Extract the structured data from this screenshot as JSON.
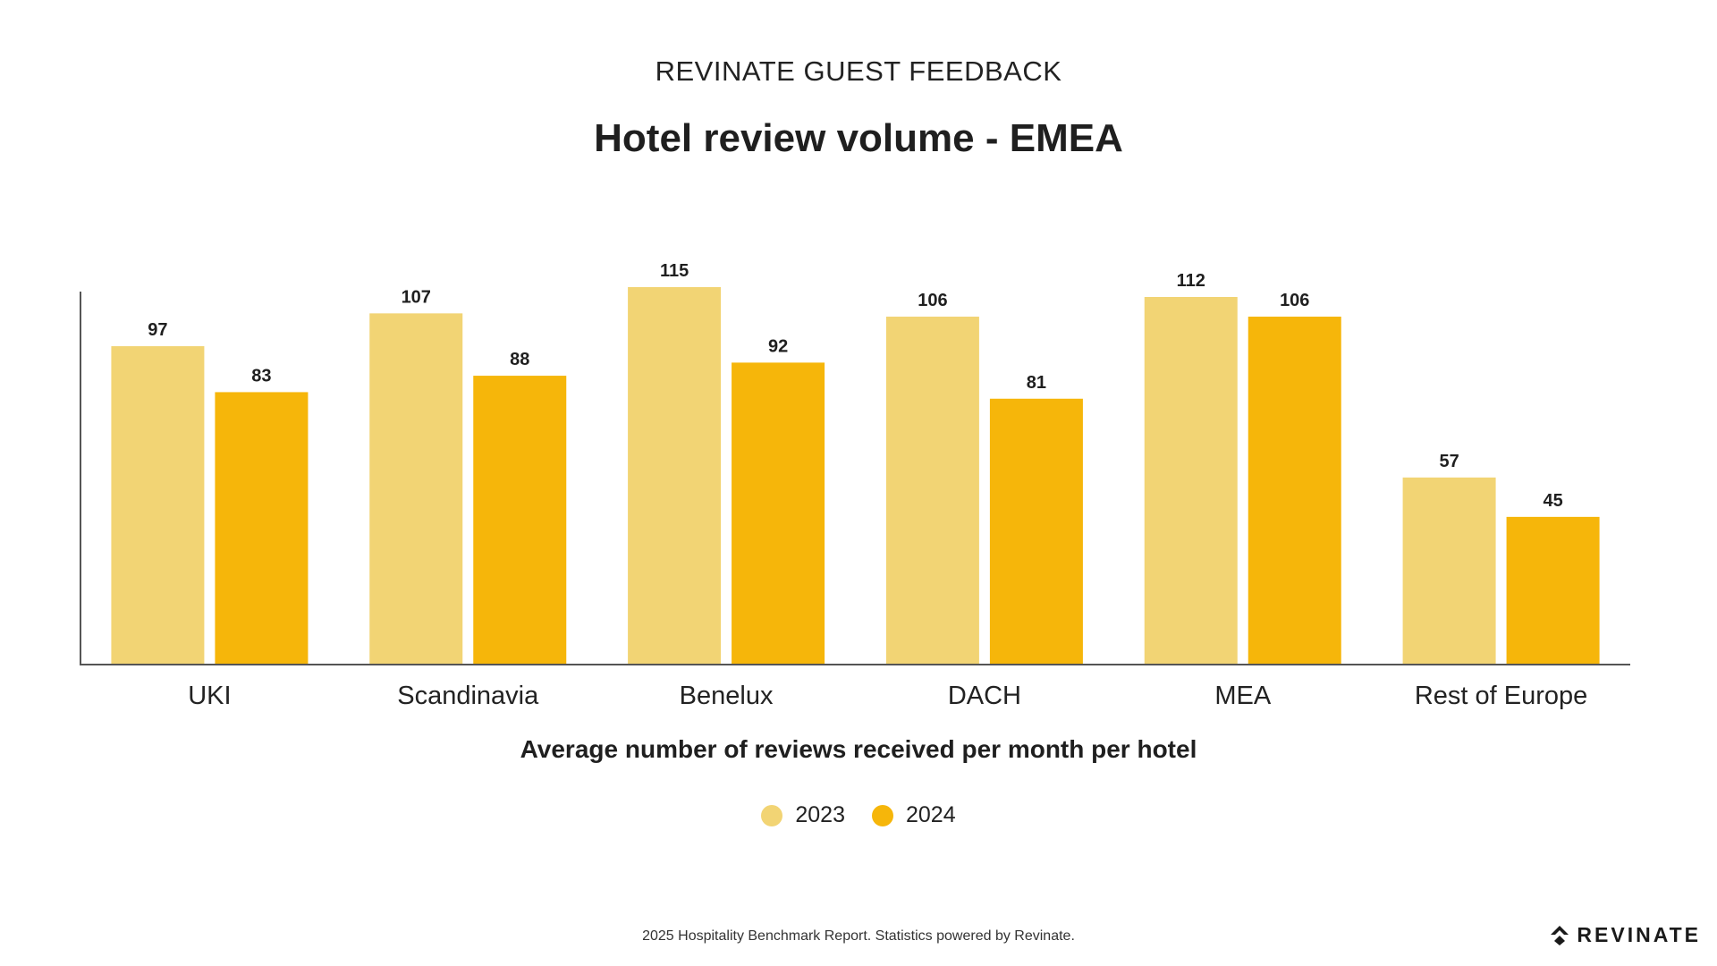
{
  "header": {
    "supertitle": "REVINATE GUEST FEEDBACK",
    "title": "Hotel review volume - EMEA"
  },
  "chart_data": {
    "type": "bar",
    "title": "Hotel review volume - EMEA",
    "xlabel": "Average number of reviews received per month per hotel",
    "ylabel": "",
    "categories": [
      "UKI",
      "Scandinavia",
      "Benelux",
      "DACH",
      "MEA",
      "Rest of Europe"
    ],
    "series": [
      {
        "name": "2023",
        "values": [
          97,
          107,
          115,
          106,
          112,
          57
        ],
        "color": "#f2d474"
      },
      {
        "name": "2024",
        "values": [
          83,
          88,
          92,
          81,
          106,
          45
        ],
        "color": "#f6b60a"
      }
    ],
    "ylim": [
      0,
      125
    ],
    "grid": false,
    "legend": "bottom-center",
    "data_labels": true
  },
  "legend": {
    "items": [
      {
        "label": "2023",
        "color": "#f2d474"
      },
      {
        "label": "2024",
        "color": "#f6b60a"
      }
    ]
  },
  "footer": {
    "text": "2025 Hospitality Benchmark Report. Statistics powered by Revinate."
  },
  "logo": {
    "icon": "revinate-logo-icon",
    "text": "REVINATE"
  }
}
